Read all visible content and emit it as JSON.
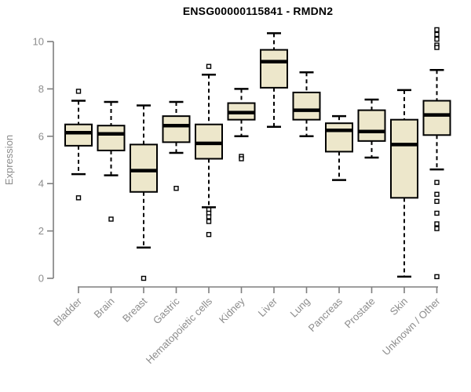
{
  "header": {
    "title": "ENSG00000115841 - RMDN2"
  },
  "colors": {
    "box_fill": "#EDE7CB",
    "box_stroke": "#000000",
    "median_color": "#000000",
    "axis_color": "#7F7F7F",
    "label_color": "#8C8C8C",
    "title_color": "#000000",
    "background": "#FFFFFF"
  },
  "chart_data": {
    "type": "boxplot",
    "title": "ENSG00000115841 - RMDN2",
    "xlabel": "",
    "ylabel": "Expression",
    "ylim": [
      0,
      10
    ],
    "yticks": [
      0,
      2,
      4,
      6,
      8,
      10
    ],
    "grid": false,
    "legend": "none",
    "categories": [
      "Bladder",
      "Brain",
      "Breast",
      "Gastric",
      "Hematopoietic cells",
      "Kidney",
      "Liver",
      "Lung",
      "Pancreas",
      "Prostate",
      "Skin",
      "Unknown / Other"
    ],
    "series": [
      {
        "name": "Bladder",
        "whisker_low": 4.4,
        "q1": 5.6,
        "median": 6.15,
        "q3": 6.5,
        "whisker_high": 7.5,
        "outliers": [
          7.9,
          3.4
        ]
      },
      {
        "name": "Brain",
        "whisker_low": 4.35,
        "q1": 5.4,
        "median": 6.1,
        "q3": 6.45,
        "whisker_high": 7.45,
        "outliers": [
          2.5
        ]
      },
      {
        "name": "Breast",
        "whisker_low": 1.3,
        "q1": 3.65,
        "median": 4.55,
        "q3": 5.65,
        "whisker_high": 7.3,
        "outliers": [
          0.0
        ]
      },
      {
        "name": "Gastric",
        "whisker_low": 5.3,
        "q1": 5.75,
        "median": 6.45,
        "q3": 6.85,
        "whisker_high": 7.45,
        "outliers": [
          3.8
        ]
      },
      {
        "name": "Hematopoietic cells",
        "whisker_low": 3.0,
        "q1": 5.05,
        "median": 5.7,
        "q3": 6.5,
        "whisker_high": 8.6,
        "outliers": [
          8.95,
          2.9,
          2.75,
          2.6,
          2.4,
          1.85
        ]
      },
      {
        "name": "Kidney",
        "whisker_low": 6.0,
        "q1": 6.7,
        "median": 7.0,
        "q3": 7.4,
        "whisker_high": 8.0,
        "outliers": [
          5.15,
          5.05
        ]
      },
      {
        "name": "Liver",
        "whisker_low": 6.4,
        "q1": 8.05,
        "median": 9.15,
        "q3": 9.65,
        "whisker_high": 10.35,
        "outliers": []
      },
      {
        "name": "Lung",
        "whisker_low": 6.0,
        "q1": 6.7,
        "median": 7.1,
        "q3": 7.85,
        "whisker_high": 8.7,
        "outliers": []
      },
      {
        "name": "Pancreas",
        "whisker_low": 4.15,
        "q1": 5.35,
        "median": 6.25,
        "q3": 6.55,
        "whisker_high": 6.85,
        "outliers": []
      },
      {
        "name": "Prostate",
        "whisker_low": 5.1,
        "q1": 5.8,
        "median": 6.2,
        "q3": 7.1,
        "whisker_high": 7.55,
        "outliers": []
      },
      {
        "name": "Skin",
        "whisker_low": 0.07,
        "q1": 3.4,
        "median": 5.65,
        "q3": 6.7,
        "whisker_high": 7.95,
        "outliers": []
      },
      {
        "name": "Unknown / Other",
        "whisker_low": 4.6,
        "q1": 6.05,
        "median": 6.9,
        "q3": 7.5,
        "whisker_high": 8.8,
        "outliers": [
          10.5,
          10.3,
          10.1,
          9.85,
          9.75,
          4.05,
          3.55,
          3.25,
          2.75,
          2.3,
          2.1,
          0.07
        ]
      }
    ]
  }
}
